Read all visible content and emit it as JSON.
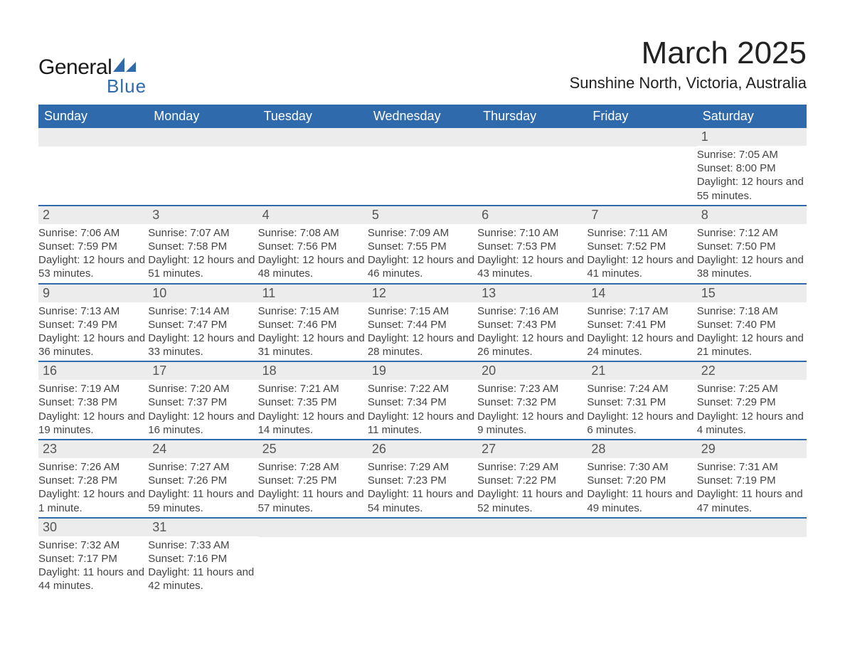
{
  "logo": {
    "text_general": "General",
    "text_blue": "Blue",
    "shape_color": "#2f6bac"
  },
  "header": {
    "month_title": "March 2025",
    "location": "Sunshine North, Victoria, Australia"
  },
  "styling": {
    "header_bg": "#2f6bac",
    "header_text_color": "#ffffff",
    "daynum_bg": "#ececec",
    "row_border_color": "#2f6bac",
    "body_text_color": "#444444",
    "page_bg": "#ffffff",
    "title_fontsize": 44,
    "location_fontsize": 22,
    "dayheader_fontsize": 18,
    "body_fontsize": 15
  },
  "day_headers": [
    "Sunday",
    "Monday",
    "Tuesday",
    "Wednesday",
    "Thursday",
    "Friday",
    "Saturday"
  ],
  "weeks": [
    [
      {
        "blank": true
      },
      {
        "blank": true
      },
      {
        "blank": true
      },
      {
        "blank": true
      },
      {
        "blank": true
      },
      {
        "blank": true
      },
      {
        "num": "1",
        "sunrise": "Sunrise: 7:05 AM",
        "sunset": "Sunset: 8:00 PM",
        "daylight": "Daylight: 12 hours and 55 minutes."
      }
    ],
    [
      {
        "num": "2",
        "sunrise": "Sunrise: 7:06 AM",
        "sunset": "Sunset: 7:59 PM",
        "daylight": "Daylight: 12 hours and 53 minutes."
      },
      {
        "num": "3",
        "sunrise": "Sunrise: 7:07 AM",
        "sunset": "Sunset: 7:58 PM",
        "daylight": "Daylight: 12 hours and 51 minutes."
      },
      {
        "num": "4",
        "sunrise": "Sunrise: 7:08 AM",
        "sunset": "Sunset: 7:56 PM",
        "daylight": "Daylight: 12 hours and 48 minutes."
      },
      {
        "num": "5",
        "sunrise": "Sunrise: 7:09 AM",
        "sunset": "Sunset: 7:55 PM",
        "daylight": "Daylight: 12 hours and 46 minutes."
      },
      {
        "num": "6",
        "sunrise": "Sunrise: 7:10 AM",
        "sunset": "Sunset: 7:53 PM",
        "daylight": "Daylight: 12 hours and 43 minutes."
      },
      {
        "num": "7",
        "sunrise": "Sunrise: 7:11 AM",
        "sunset": "Sunset: 7:52 PM",
        "daylight": "Daylight: 12 hours and 41 minutes."
      },
      {
        "num": "8",
        "sunrise": "Sunrise: 7:12 AM",
        "sunset": "Sunset: 7:50 PM",
        "daylight": "Daylight: 12 hours and 38 minutes."
      }
    ],
    [
      {
        "num": "9",
        "sunrise": "Sunrise: 7:13 AM",
        "sunset": "Sunset: 7:49 PM",
        "daylight": "Daylight: 12 hours and 36 minutes."
      },
      {
        "num": "10",
        "sunrise": "Sunrise: 7:14 AM",
        "sunset": "Sunset: 7:47 PM",
        "daylight": "Daylight: 12 hours and 33 minutes."
      },
      {
        "num": "11",
        "sunrise": "Sunrise: 7:15 AM",
        "sunset": "Sunset: 7:46 PM",
        "daylight": "Daylight: 12 hours and 31 minutes."
      },
      {
        "num": "12",
        "sunrise": "Sunrise: 7:15 AM",
        "sunset": "Sunset: 7:44 PM",
        "daylight": "Daylight: 12 hours and 28 minutes."
      },
      {
        "num": "13",
        "sunrise": "Sunrise: 7:16 AM",
        "sunset": "Sunset: 7:43 PM",
        "daylight": "Daylight: 12 hours and 26 minutes."
      },
      {
        "num": "14",
        "sunrise": "Sunrise: 7:17 AM",
        "sunset": "Sunset: 7:41 PM",
        "daylight": "Daylight: 12 hours and 24 minutes."
      },
      {
        "num": "15",
        "sunrise": "Sunrise: 7:18 AM",
        "sunset": "Sunset: 7:40 PM",
        "daylight": "Daylight: 12 hours and 21 minutes."
      }
    ],
    [
      {
        "num": "16",
        "sunrise": "Sunrise: 7:19 AM",
        "sunset": "Sunset: 7:38 PM",
        "daylight": "Daylight: 12 hours and 19 minutes."
      },
      {
        "num": "17",
        "sunrise": "Sunrise: 7:20 AM",
        "sunset": "Sunset: 7:37 PM",
        "daylight": "Daylight: 12 hours and 16 minutes."
      },
      {
        "num": "18",
        "sunrise": "Sunrise: 7:21 AM",
        "sunset": "Sunset: 7:35 PM",
        "daylight": "Daylight: 12 hours and 14 minutes."
      },
      {
        "num": "19",
        "sunrise": "Sunrise: 7:22 AM",
        "sunset": "Sunset: 7:34 PM",
        "daylight": "Daylight: 12 hours and 11 minutes."
      },
      {
        "num": "20",
        "sunrise": "Sunrise: 7:23 AM",
        "sunset": "Sunset: 7:32 PM",
        "daylight": "Daylight: 12 hours and 9 minutes."
      },
      {
        "num": "21",
        "sunrise": "Sunrise: 7:24 AM",
        "sunset": "Sunset: 7:31 PM",
        "daylight": "Daylight: 12 hours and 6 minutes."
      },
      {
        "num": "22",
        "sunrise": "Sunrise: 7:25 AM",
        "sunset": "Sunset: 7:29 PM",
        "daylight": "Daylight: 12 hours and 4 minutes."
      }
    ],
    [
      {
        "num": "23",
        "sunrise": "Sunrise: 7:26 AM",
        "sunset": "Sunset: 7:28 PM",
        "daylight": "Daylight: 12 hours and 1 minute."
      },
      {
        "num": "24",
        "sunrise": "Sunrise: 7:27 AM",
        "sunset": "Sunset: 7:26 PM",
        "daylight": "Daylight: 11 hours and 59 minutes."
      },
      {
        "num": "25",
        "sunrise": "Sunrise: 7:28 AM",
        "sunset": "Sunset: 7:25 PM",
        "daylight": "Daylight: 11 hours and 57 minutes."
      },
      {
        "num": "26",
        "sunrise": "Sunrise: 7:29 AM",
        "sunset": "Sunset: 7:23 PM",
        "daylight": "Daylight: 11 hours and 54 minutes."
      },
      {
        "num": "27",
        "sunrise": "Sunrise: 7:29 AM",
        "sunset": "Sunset: 7:22 PM",
        "daylight": "Daylight: 11 hours and 52 minutes."
      },
      {
        "num": "28",
        "sunrise": "Sunrise: 7:30 AM",
        "sunset": "Sunset: 7:20 PM",
        "daylight": "Daylight: 11 hours and 49 minutes."
      },
      {
        "num": "29",
        "sunrise": "Sunrise: 7:31 AM",
        "sunset": "Sunset: 7:19 PM",
        "daylight": "Daylight: 11 hours and 47 minutes."
      }
    ],
    [
      {
        "num": "30",
        "sunrise": "Sunrise: 7:32 AM",
        "sunset": "Sunset: 7:17 PM",
        "daylight": "Daylight: 11 hours and 44 minutes."
      },
      {
        "num": "31",
        "sunrise": "Sunrise: 7:33 AM",
        "sunset": "Sunset: 7:16 PM",
        "daylight": "Daylight: 11 hours and 42 minutes."
      },
      {
        "blank": true
      },
      {
        "blank": true
      },
      {
        "blank": true
      },
      {
        "blank": true
      },
      {
        "blank": true
      }
    ]
  ]
}
